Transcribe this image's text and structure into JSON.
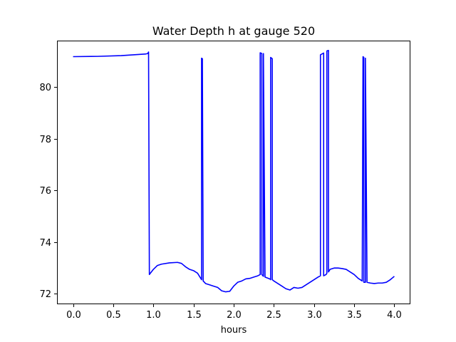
{
  "chart_data": {
    "type": "line",
    "title": "Water Depth h at gauge 520",
    "xlabel": "hours",
    "ylabel": "",
    "xlim": [
      -0.2,
      4.2
    ],
    "ylim": [
      71.6,
      81.8
    ],
    "xticks": [
      0.0,
      0.5,
      1.0,
      1.5,
      2.0,
      2.5,
      3.0,
      3.5,
      4.0
    ],
    "xtick_labels": [
      "0.0",
      "0.5",
      "1.0",
      "1.5",
      "2.0",
      "2.5",
      "3.0",
      "3.5",
      "4.0"
    ],
    "yticks": [
      72,
      74,
      76,
      78,
      80
    ],
    "ytick_labels": [
      "72",
      "74",
      "76",
      "78",
      "80"
    ],
    "grid": false,
    "series": [
      {
        "color": "#0000ff",
        "x": [
          0.0,
          0.3,
          0.6,
          0.8,
          0.9,
          0.93,
          0.94,
          0.95,
          1.0,
          1.05,
          1.1,
          1.2,
          1.3,
          1.35,
          1.4,
          1.45,
          1.5,
          1.55,
          1.6,
          1.6,
          1.61,
          1.62,
          1.62,
          1.65,
          1.7,
          1.75,
          1.8,
          1.85,
          1.9,
          1.95,
          2.0,
          2.05,
          2.1,
          2.15,
          2.2,
          2.25,
          2.3,
          2.33,
          2.33,
          2.35,
          2.35,
          2.37,
          2.37,
          2.39,
          2.45,
          2.46,
          2.46,
          2.48,
          2.48,
          2.5,
          2.55,
          2.6,
          2.65,
          2.7,
          2.75,
          2.8,
          2.85,
          2.9,
          2.95,
          3.0,
          3.05,
          3.08,
          3.08,
          3.12,
          3.12,
          3.15,
          3.16,
          3.16,
          3.18,
          3.18,
          3.2,
          3.25,
          3.3,
          3.35,
          3.4,
          3.45,
          3.5,
          3.55,
          3.6,
          3.61,
          3.62,
          3.62,
          3.64,
          3.64,
          3.66,
          3.7,
          3.75,
          3.8,
          3.85,
          3.9,
          3.95,
          4.0
        ],
        "y": [
          81.18,
          81.19,
          81.22,
          81.26,
          81.28,
          81.3,
          81.36,
          72.75,
          72.95,
          73.1,
          73.15,
          73.2,
          73.22,
          73.18,
          73.05,
          72.95,
          72.9,
          72.8,
          72.55,
          81.12,
          81.1,
          72.5,
          72.5,
          72.4,
          72.35,
          72.3,
          72.25,
          72.12,
          72.08,
          72.1,
          72.3,
          72.45,
          72.5,
          72.58,
          72.6,
          72.65,
          72.7,
          72.75,
          81.33,
          81.3,
          72.75,
          72.68,
          81.3,
          72.65,
          72.58,
          72.55,
          81.15,
          81.1,
          72.55,
          72.5,
          72.4,
          72.3,
          72.2,
          72.15,
          72.25,
          72.22,
          72.25,
          72.35,
          72.45,
          72.55,
          72.65,
          72.7,
          81.25,
          81.32,
          72.7,
          72.75,
          72.8,
          81.4,
          81.42,
          72.85,
          72.95,
          73.0,
          73.0,
          72.98,
          72.95,
          72.85,
          72.75,
          72.6,
          72.5,
          81.18,
          81.15,
          72.45,
          72.45,
          81.12,
          72.45,
          72.42,
          72.4,
          72.42,
          72.42,
          72.45,
          72.55,
          72.68
        ]
      }
    ]
  }
}
